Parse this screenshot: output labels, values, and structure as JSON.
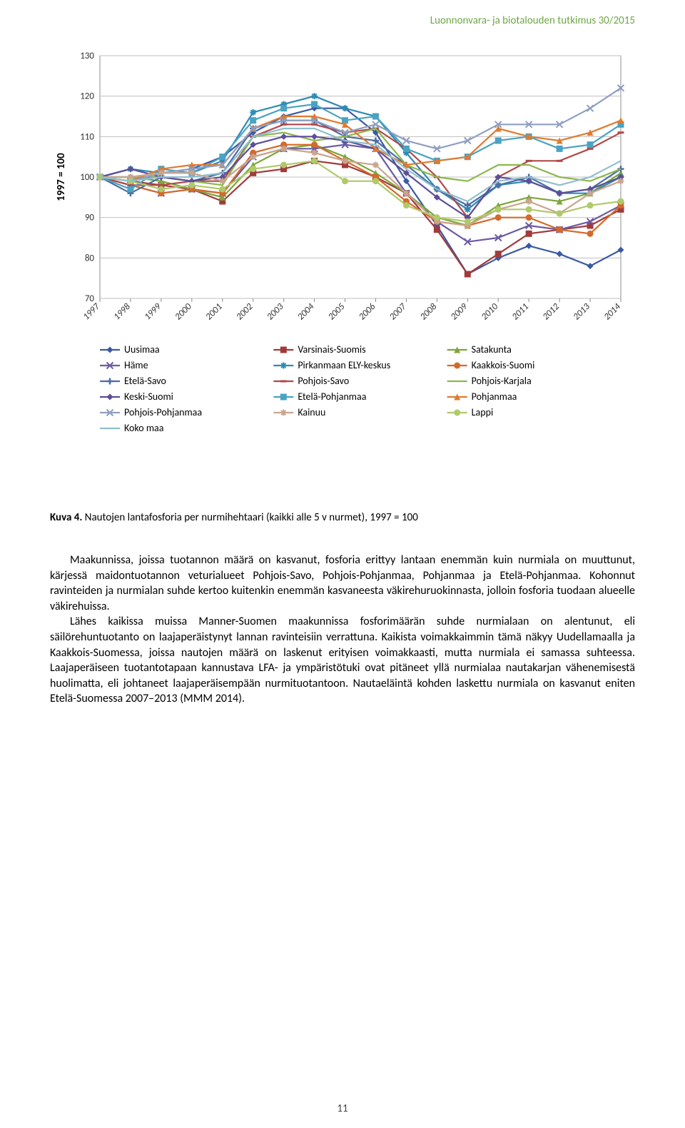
{
  "running_head": "Luonnonvara- ja biotalouden tutkimus 30/2015",
  "chart": {
    "type": "line",
    "ylabel": "1997 = 100",
    "ylabel_fontsize": 15,
    "ylim": [
      70,
      130
    ],
    "ytick_step": 10,
    "xlabels": [
      "1997",
      "1998",
      "1999",
      "2000",
      "2001",
      "2002",
      "2003",
      "2004",
      "2005",
      "2006",
      "2007",
      "2008",
      "2009",
      "2010",
      "2011",
      "2012",
      "2013",
      "2014"
    ],
    "tick_fontsize": 13,
    "background_color": "#ffffff",
    "plot_border_color": "#8c8c8c",
    "grid_color": "#bfbfbf",
    "line_width": 2.2,
    "marker_size": 4.5,
    "series": [
      {
        "name": "Uusimaa",
        "color": "#3b5aa3",
        "marker": "diamond",
        "values": [
          100,
          100,
          101,
          102,
          105,
          111,
          115,
          117,
          117,
          111,
          99,
          88,
          76,
          80,
          83,
          81,
          78,
          82
        ]
      },
      {
        "name": "Varsinais-Suomis",
        "color": "#a23a3a",
        "marker": "square",
        "values": [
          100,
          99,
          98,
          97,
          94,
          101,
          102,
          104,
          103,
          100,
          96,
          87,
          76,
          81,
          86,
          87,
          88,
          92
        ]
      },
      {
        "name": "Satakunta",
        "color": "#7ea63a",
        "marker": "triangle",
        "values": [
          100,
          100,
          99,
          97,
          95,
          103,
          107,
          108,
          105,
          101,
          96,
          90,
          88,
          93,
          95,
          94,
          96,
          101
        ]
      },
      {
        "name": "Häme",
        "color": "#6b5aa3",
        "marker": "x",
        "values": [
          100,
          98,
          96,
          97,
          96,
          105,
          107,
          107,
          108,
          107,
          96,
          89,
          84,
          85,
          88,
          87,
          89,
          93
        ]
      },
      {
        "name": "Pirkanmaan ELY-keskus",
        "color": "#2e8bb5",
        "marker": "asterisk",
        "values": [
          100,
          102,
          101,
          101,
          104,
          116,
          118,
          120,
          117,
          115,
          106,
          97,
          92,
          98,
          99,
          96,
          96,
          100
        ]
      },
      {
        "name": "Kaakkois-Suomi",
        "color": "#d46a2a",
        "marker": "circle",
        "values": [
          100,
          98,
          96,
          97,
          96,
          106,
          108,
          108,
          104,
          100,
          94,
          89,
          88,
          90,
          90,
          87,
          86,
          93
        ]
      },
      {
        "name": "Etelä-Savo",
        "color": "#4b6da3",
        "marker": "plus",
        "values": [
          100,
          96,
          100,
          99,
          101,
          112,
          114,
          114,
          110,
          109,
          103,
          97,
          93,
          98,
          100,
          96,
          97,
          102
        ]
      },
      {
        "name": "Pohjois-Savo",
        "color": "#b24848",
        "marker": "dash",
        "values": [
          100,
          98,
          98,
          99,
          99,
          110,
          113,
          113,
          111,
          112,
          107,
          100,
          90,
          100,
          104,
          104,
          107,
          111
        ]
      },
      {
        "name": "Pohjois-Karjala",
        "color": "#8cb84c",
        "marker": "none",
        "values": [
          100,
          100,
          100,
          99,
          98,
          110,
          111,
          109,
          110,
          112,
          103,
          100,
          99,
          103,
          103,
          100,
          99,
          102
        ]
      },
      {
        "name": "Keski-Suomi",
        "color": "#5c4e99",
        "marker": "diamond",
        "values": [
          100,
          102,
          100,
          99,
          100,
          108,
          110,
          110,
          109,
          107,
          101,
          95,
          90,
          100,
          99,
          96,
          97,
          100
        ]
      },
      {
        "name": "Etelä-Pohjanmaa",
        "color": "#4aa3c2",
        "marker": "square",
        "values": [
          100,
          97,
          102,
          101,
          105,
          114,
          117,
          118,
          114,
          115,
          107,
          104,
          105,
          109,
          110,
          107,
          108,
          113
        ]
      },
      {
        "name": "Pohjanmaa",
        "color": "#e07b2e",
        "marker": "triangle",
        "values": [
          100,
          99,
          102,
          103,
          103,
          112,
          115,
          115,
          113,
          107,
          103,
          104,
          105,
          112,
          110,
          109,
          111,
          114
        ]
      },
      {
        "name": "Pohjois-Pohjanmaa",
        "color": "#8f9fc2",
        "marker": "x",
        "values": [
          100,
          99,
          101,
          102,
          103,
          112,
          114,
          114,
          111,
          113,
          109,
          107,
          109,
          113,
          113,
          113,
          117,
          122
        ]
      },
      {
        "name": "Kainuu",
        "color": "#c9a58f",
        "marker": "asterisk",
        "values": [
          100,
          100,
          101,
          101,
          99,
          105,
          107,
          106,
          104,
          103,
          96,
          89,
          88,
          92,
          94,
          91,
          96,
          99
        ]
      },
      {
        "name": "Lappi",
        "color": "#b0c96a",
        "marker": "circle",
        "values": [
          100,
          99,
          97,
          98,
          97,
          102,
          103,
          104,
          99,
          99,
          93,
          90,
          89,
          92,
          92,
          91,
          93,
          94
        ]
      },
      {
        "name": "Koko maa",
        "color": "#8fbfcf",
        "marker": "none",
        "values": [
          100,
          99,
          100,
          100,
          101,
          110,
          112,
          112,
          109,
          108,
          102,
          97,
          94,
          99,
          100,
          98,
          100,
          104
        ]
      }
    ],
    "legend_cols": 3,
    "legend_fontsize": 14
  },
  "caption_strong": "Kuva 4.",
  "caption_rest": " Nautojen lantafosforia per nurmihehtaari (kaikki alle 5 v nurmet), 1997 = 100",
  "paragraphs": [
    "Maakunnissa, joissa tuotannon määrä on kasvanut, fosforia erittyy lantaan enemmän kuin nurmiala on muuttunut, kärjessä maidontuotannon veturialueet Pohjois-Savo, Pohjois-Pohjanmaa, Pohjanmaa ja Etelä-Pohjanmaa. Kohonnut ravinteiden ja nurmialan suhde kertoo kuitenkin enemmän kasvaneesta väkirehuruokinnasta, jolloin fosforia tuodaan alueelle väkirehuissa.",
    "Lähes kaikissa muissa Manner-Suomen maakunnissa fosforimäärän suhde nurmialaan on alentunut, eli säilörehuntuotanto on laajaperäistynyt lannan ravinteisiin verrattuna. Kaikista voimakkaimmin tämä näkyy Uudellamaalla ja Kaakkois-Suomessa, joissa nautojen määrä on laskenut erityisen voimakkaasti, mutta nurmiala ei samassa suhteessa. Laajaperäiseen tuotantotapaan kannustava LFA- ja ympäristötuki ovat pitäneet yllä nurmialaa nautakarjan vähenemisestä huolimatta, eli johtaneet laajaperäisempään nurmituotantoon. Nautaeläintä kohden laskettu nurmiala on kasvanut eniten Etelä-Suomessa 2007–2013 (MMM 2014)."
  ],
  "page_number": "11"
}
